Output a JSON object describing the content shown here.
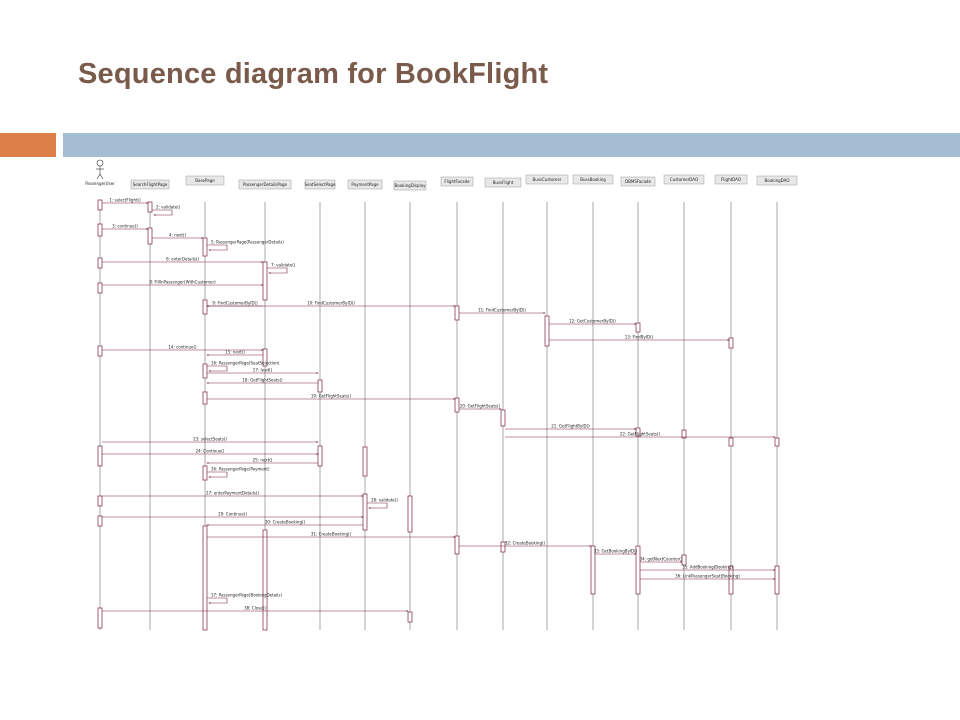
{
  "slide": {
    "title": "Sequence diagram for BookFlight"
  },
  "diagram": {
    "actor": "PassengerUser",
    "lifelines": [
      "SearchFlightPage",
      "BasePage",
      "PassengerDetailsPage",
      "SeatSelectPage",
      "PaymentPage",
      "BookingDisplay",
      "FlightFacade",
      "BussFlight",
      "BussCustomer",
      "BussBooking",
      "DBMSFacade",
      "CustomerDAO",
      "FlightDAO",
      "BookingDAO"
    ],
    "messages": [
      "1: selectFlight()",
      "2: validate()",
      "3: continue()",
      "4: next()",
      "5: PassengerPage(PassengerDetails)",
      "6: enterDetails()",
      "7: validate()",
      "8: FillInPassenger(WithCustomer)",
      "9: FindCustomerByID()",
      "10: FindCustomerByID()",
      "11: FindCustomerByID()",
      "12: GetCustomerByID()",
      "13: FindByID()",
      "14: continue()",
      "15: next()",
      "16: PassengerPage(SeatSelection)",
      "17: load()",
      "18: GetFlightSeats()",
      "19: GetFlightSeats()",
      "20: GetFlightSeats()",
      "21: GetFlightByID()",
      "22: GetFlightSeats()",
      "23: selectSeats()",
      "24: Continue()",
      "25: next()",
      "26: PassengerPage(Payment)",
      "27: enterPaymentDetails()",
      "28: validate()",
      "29: Continue()",
      "30: CreateBooking()",
      "31: CreateBooking()",
      "32: CreateBooking()",
      "33: GetBookingByID()",
      "34: getNextCounter()",
      "35: AddBooking(Booking)",
      "36: LinkPassengerSeat(Booking)",
      "37: PassengerPage(BookingDetails)",
      "38: Close()"
    ]
  }
}
